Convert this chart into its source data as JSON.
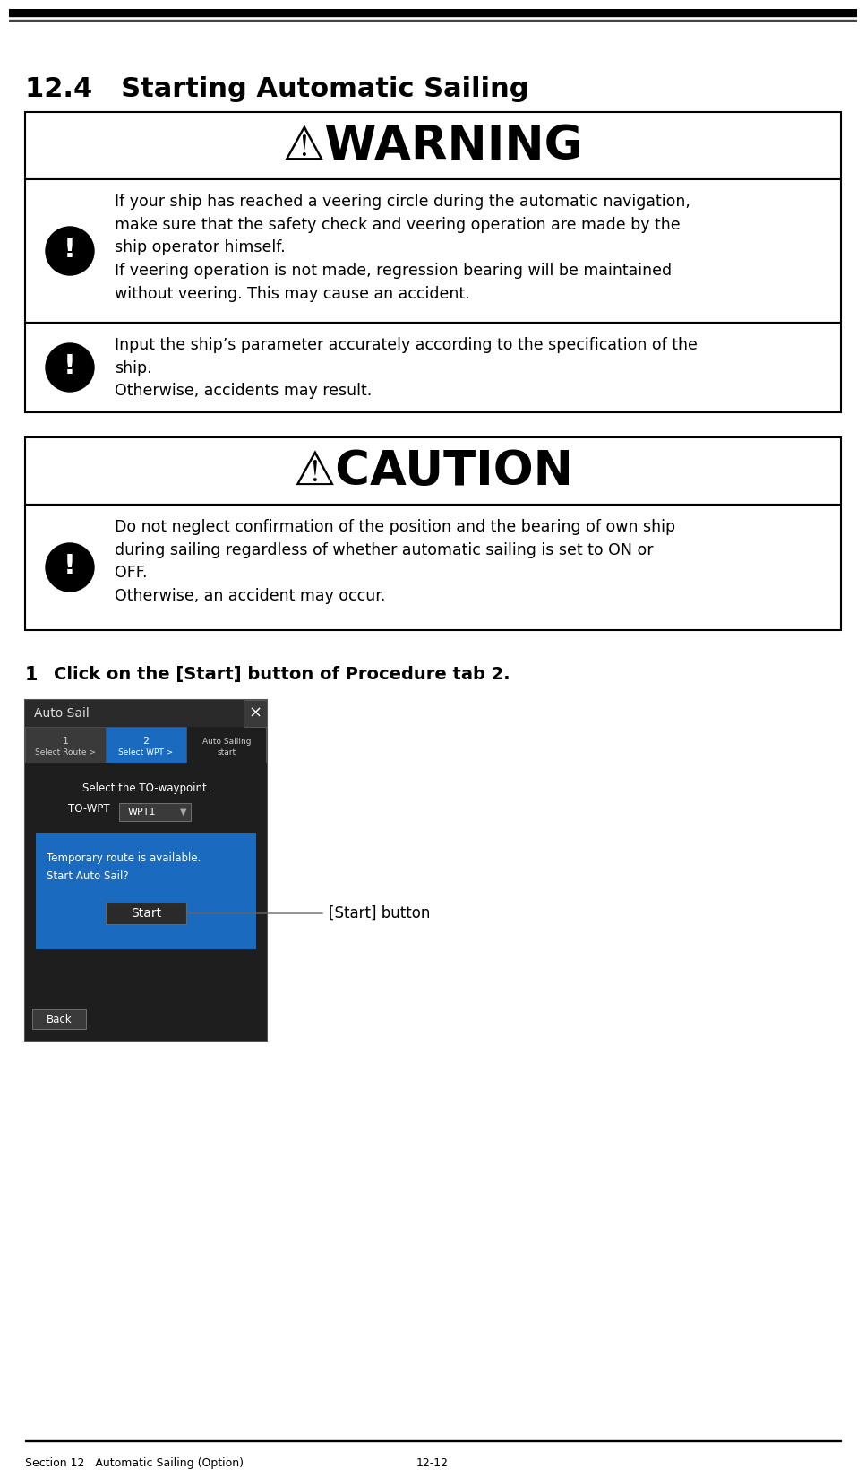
{
  "title": "12.4   Starting Automatic Sailing",
  "title_fontsize": 22,
  "bg_color": "#ffffff",
  "warning_title": "⚠WARNING",
  "caution_title": "⚠CAUTION",
  "text_color": "#000000",
  "box_border_color": "#000000",
  "icon_bg_color": "#000000",
  "icon_fg_color": "#ffffff",
  "warn_row1_text1": "If your ship has reached a veering circle during the automatic navigation,",
  "warn_row1_text2": "make sure that the safety check and veering operation are made by the",
  "warn_row1_text3": "ship operator himself.",
  "warn_row1_text4": "If veering operation is not made, regression bearing will be maintained",
  "warn_row1_text5": "without veering. This may cause an accident.",
  "warn_row2_text1": "Input the ship’s parameter accurately according to the specification of the",
  "warn_row2_text2": "ship.",
  "warn_row2_text3": "Otherwise, accidents may result.",
  "caut_row1_text1": "Do not neglect confirmation of the position and the bearing of own ship",
  "caut_row1_text2": "during sailing regardless of whether automatic sailing is set to ON or",
  "caut_row1_text3": "OFF.",
  "caut_row1_text4": "Otherwise, an accident may occur.",
  "step_number": "1",
  "step_text": "Click on the [Start] button of Procedure tab 2.",
  "footer_left": "Section 12   Automatic Sailing (Option)",
  "footer_right": "12-12",
  "screenshot_label": "[Start] button",
  "ss_titlebar_color": "#2a2a2a",
  "ss_titlebar_text": "Auto Sail",
  "ss_tab_inactive": "#3a3a3a",
  "ss_tab_active": "#1a6abf",
  "ss_body_dark": "#1e1e1e",
  "ss_body_light": "#2d2d2d",
  "ss_blue": "#1a6abf",
  "ss_btn_color": "#3a3a3a",
  "ss_white": "#ffffff",
  "ss_gray_text": "#cccccc",
  "ss_wpt_dropdown": "#3a3a3a"
}
